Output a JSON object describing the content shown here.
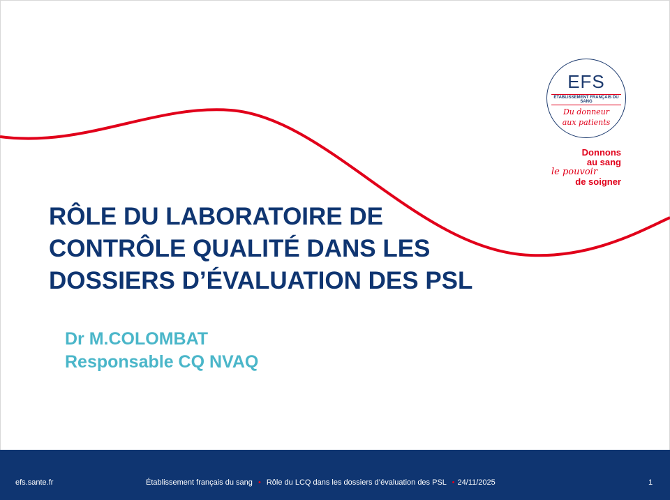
{
  "title_lines": [
    "RÔLE DU LABORATOIRE DE",
    "CONTRÔLE QUALITÉ DANS LES",
    "DOSSIERS D’ÉVALUATION DES PSL"
  ],
  "author": {
    "name": "Dr M.COLOMBAT",
    "role": "Responsable CQ NVAQ"
  },
  "logo": {
    "acronym": "EFS",
    "full_name": "ÉTABLISSEMENT FRANÇAIS DU SANG",
    "tagline_1": "Du donneur",
    "tagline_2": "aux patients"
  },
  "slogan": {
    "line1": "Donnons",
    "line2": "au sang",
    "line3": "le pouvoir",
    "line4": "de soigner"
  },
  "footer": {
    "site": "efs.sante.fr",
    "org": "Établissement français du sang",
    "separator": "•",
    "subject": "Rôle du LCQ dans les dossiers d’évaluation des PSL",
    "date": "24/11/2025",
    "page": "1"
  },
  "colors": {
    "navy": "#0f3571",
    "red": "#e1001a",
    "teal": "#4ab6c9"
  }
}
